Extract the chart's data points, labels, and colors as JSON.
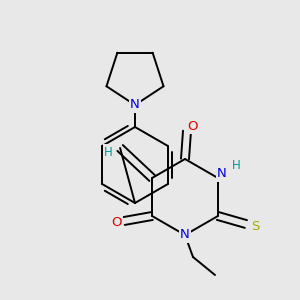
{
  "bg_color": "#e8e8e8",
  "lw": 1.4,
  "atom_colors": {
    "N": "#0000dd",
    "O": "#dd0000",
    "S": "#aaaa00",
    "H": "#009999"
  },
  "fs": 9.5
}
